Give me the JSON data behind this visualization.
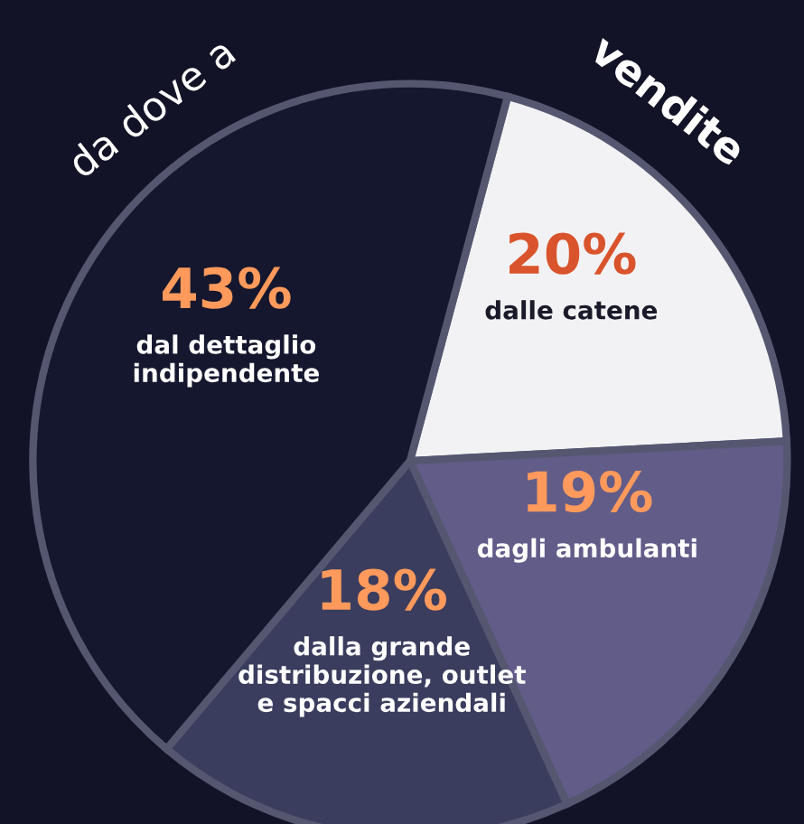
{
  "chart_data": {
    "type": "pie",
    "categories": [
      "dalle catene",
      "dagli ambulanti",
      "dalla grande\ndistribuzione, outlet\ne spacci aziendali",
      "dal dettaglio\nindipendente"
    ],
    "values": [
      20,
      19,
      18,
      43
    ],
    "value_labels": [
      "20%",
      "19%",
      "18%",
      "43%"
    ],
    "colors": [
      "#f2f2f4",
      "#625c88",
      "#3b3d5e",
      "#15172e"
    ],
    "annotations": [
      "da dove a",
      "vendite"
    ]
  }
}
